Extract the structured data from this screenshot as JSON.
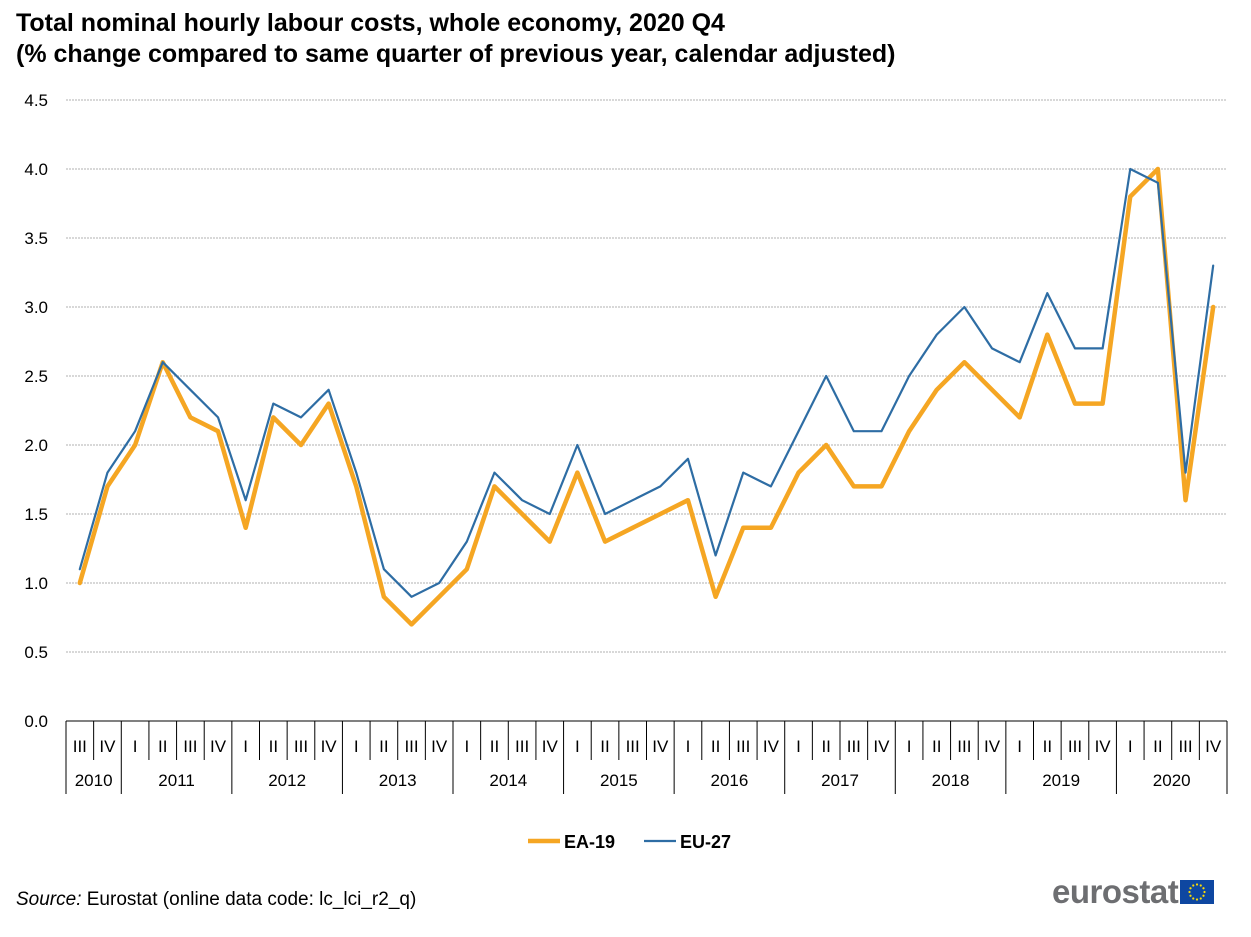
{
  "title_line1": "Total nominal hourly labour costs, whole economy, 2020 Q4",
  "title_line2": "(% change compared to same quarter of previous year, calendar adjusted)",
  "source_label": "Source:",
  "source_text": " Eurostat (online data code: lc_lci_r2_q)",
  "logo_text": "eurostat",
  "colors": {
    "EA-19": "#f5a623",
    "EU-27": "#2e6da4",
    "grid": "#b0b0b0",
    "flag_blue": "#0e47a1",
    "flag_star": "#ffdd00"
  },
  "chart_data": {
    "type": "line",
    "ylim": [
      0,
      4.5
    ],
    "yticks": [
      "0.0",
      "0.5",
      "1.0",
      "1.5",
      "2.0",
      "2.5",
      "3.0",
      "3.5",
      "4.0",
      "4.5"
    ],
    "legend_position": "bottom-center",
    "grid": true,
    "quarters": [
      "III",
      "IV",
      "I",
      "II",
      "III",
      "IV",
      "I",
      "II",
      "III",
      "IV",
      "I",
      "II",
      "III",
      "IV",
      "I",
      "II",
      "III",
      "IV",
      "I",
      "II",
      "III",
      "IV",
      "I",
      "II",
      "III",
      "IV",
      "I",
      "II",
      "III",
      "IV",
      "I",
      "II",
      "III",
      "IV",
      "I",
      "II",
      "III",
      "IV",
      "I",
      "II",
      "III",
      "IV"
    ],
    "years": [
      {
        "label": "2010",
        "count": 2
      },
      {
        "label": "2011",
        "count": 4
      },
      {
        "label": "2012",
        "count": 4
      },
      {
        "label": "2013",
        "count": 4
      },
      {
        "label": "2014",
        "count": 4
      },
      {
        "label": "2015",
        "count": 4
      },
      {
        "label": "2016",
        "count": 4
      },
      {
        "label": "2017",
        "count": 4
      },
      {
        "label": "2018",
        "count": 4
      },
      {
        "label": "2019",
        "count": 4
      },
      {
        "label": "2020",
        "count": 4
      }
    ],
    "series": [
      {
        "name": "EA-19",
        "values": [
          1.0,
          1.7,
          2.0,
          2.6,
          2.2,
          2.1,
          1.4,
          2.2,
          2.0,
          2.3,
          1.7,
          0.9,
          0.7,
          0.9,
          1.1,
          1.7,
          1.5,
          1.3,
          1.8,
          1.3,
          1.4,
          1.5,
          1.6,
          0.9,
          1.4,
          1.4,
          1.8,
          2.0,
          1.7,
          1.7,
          2.1,
          2.4,
          2.6,
          2.4,
          2.2,
          2.8,
          2.3,
          2.3,
          3.8,
          4.0,
          1.6,
          3.0
        ]
      },
      {
        "name": "EU-27",
        "values": [
          1.1,
          1.8,
          2.1,
          2.6,
          2.4,
          2.2,
          1.6,
          2.3,
          2.2,
          2.4,
          1.8,
          1.1,
          0.9,
          1.0,
          1.3,
          1.8,
          1.6,
          1.5,
          2.0,
          1.5,
          1.6,
          1.7,
          1.9,
          1.2,
          1.8,
          1.7,
          2.1,
          2.5,
          2.1,
          2.1,
          2.5,
          2.8,
          3.0,
          2.7,
          2.6,
          3.1,
          2.7,
          2.7,
          4.0,
          3.9,
          1.8,
          3.3
        ]
      }
    ]
  }
}
